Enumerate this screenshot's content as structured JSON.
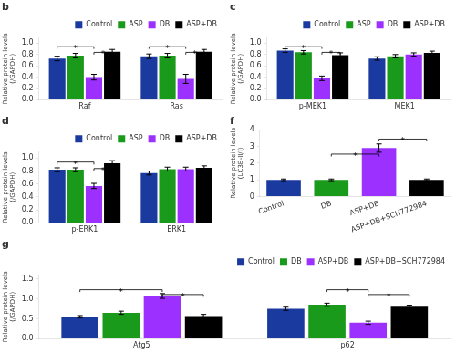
{
  "chart_data": [
    {
      "type": "bar",
      "title": "b",
      "categories": [
        "Raf",
        "Ras"
      ],
      "series": [
        {
          "name": "Control",
          "color": "#1a3a9f",
          "values": [
            0.73,
            0.77
          ],
          "errors": [
            0.04,
            0.04
          ]
        },
        {
          "name": "ASP",
          "color": "#1a9a1a",
          "values": [
            0.78,
            0.78
          ],
          "errors": [
            0.04,
            0.04
          ]
        },
        {
          "name": "DB",
          "color": "#9b30ff",
          "values": [
            0.4,
            0.37
          ],
          "errors": [
            0.05,
            0.08
          ]
        },
        {
          "name": "ASP+DB",
          "color": "#000000",
          "values": [
            0.85,
            0.85
          ],
          "errors": [
            0.04,
            0.04
          ]
        }
      ],
      "ylabel": "Relative protein levels\n(/GAPDH)",
      "ylim": [
        0.0,
        1.1
      ],
      "yticks": [
        {
          "value": 0,
          "label": "0.0"
        },
        0.2,
        0.4,
        0.6,
        0.8,
        {
          "value": 1,
          "label": "1.0"
        }
      ],
      "grid": false,
      "legend": "upper right",
      "annotations": [
        {
          "text": "*",
          "group": "Raf",
          "from": "Control",
          "to": "DB",
          "y": 0.9
        },
        {
          "text": "*",
          "group": "Raf",
          "from": "DB",
          "to": "ASP+DB",
          "y": 0.8
        },
        {
          "text": "*",
          "group": "Ras",
          "from": "Control",
          "to": "DB",
          "y": 0.9
        },
        {
          "text": "*",
          "group": "Ras",
          "from": "DB",
          "to": "ASP+DB",
          "y": 0.8
        }
      ]
    },
    {
      "type": "bar",
      "title": "c",
      "categories": [
        "p-MEK1",
        "MEK1"
      ],
      "series": [
        {
          "name": "Control",
          "color": "#1a3a9f",
          "values": [
            0.87,
            0.73
          ],
          "errors": [
            0.03,
            0.03
          ]
        },
        {
          "name": "ASP",
          "color": "#1a9a1a",
          "values": [
            0.84,
            0.77
          ],
          "errors": [
            0.03,
            0.03
          ]
        },
        {
          "name": "DB",
          "color": "#9b30ff",
          "values": [
            0.38,
            0.8
          ],
          "errors": [
            0.04,
            0.03
          ]
        },
        {
          "name": "ASP+DB",
          "color": "#000000",
          "values": [
            0.79,
            0.83
          ],
          "errors": [
            0.04,
            0.03
          ]
        }
      ],
      "ylabel": "Relative protein levels\n(/GAPDH)",
      "ylim": [
        0.0,
        1.1
      ],
      "yticks": [
        {
          "value": 0,
          "label": "0.0"
        },
        0.2,
        0.4,
        0.6,
        0.8,
        {
          "value": 1,
          "label": "1.0"
        }
      ],
      "grid": false,
      "legend": "upper right",
      "annotations": [
        {
          "text": "*",
          "group": "p-MEK1",
          "from": "Control",
          "to": "DB",
          "y": 0.9
        },
        {
          "text": "*",
          "group": "p-MEK1",
          "from": "DB",
          "to": "ASP+DB",
          "y": 0.8
        }
      ]
    },
    {
      "type": "bar",
      "title": "d",
      "categories": [
        "p-ERK1",
        "ERK1"
      ],
      "series": [
        {
          "name": "Control",
          "color": "#1a3a9f",
          "values": [
            0.82,
            0.77
          ],
          "errors": [
            0.03,
            0.03
          ]
        },
        {
          "name": "ASP",
          "color": "#1a9a1a",
          "values": [
            0.82,
            0.83
          ],
          "errors": [
            0.03,
            0.03
          ]
        },
        {
          "name": "DB",
          "color": "#9b30ff",
          "values": [
            0.57,
            0.83
          ],
          "errors": [
            0.04,
            0.03
          ]
        },
        {
          "name": "ASP+DB",
          "color": "#000000",
          "values": [
            0.92,
            0.85
          ],
          "errors": [
            0.04,
            0.03
          ]
        }
      ],
      "ylabel": "Relative protein levels\n(/GAPDH)",
      "ylim": [
        0.0,
        1.1
      ],
      "yticks": [
        {
          "value": 0,
          "label": "0.0"
        },
        0.2,
        0.4,
        0.6,
        0.8,
        {
          "value": 1,
          "label": "1.0"
        }
      ],
      "grid": false,
      "legend": "upper right",
      "annotations": [
        {
          "text": "*",
          "group": "p-ERK1",
          "from": "Control",
          "to": "DB",
          "y": 0.9
        },
        {
          "text": "*",
          "group": "p-ERK1",
          "from": "DB",
          "to": "ASP+DB",
          "y": 0.8
        }
      ]
    },
    {
      "type": "bar",
      "title": "f",
      "categories": [
        "Control",
        "DB",
        "ASP+DB",
        "ASP+DB+SCH772984"
      ],
      "values": [
        1.0,
        1.0,
        2.9,
        1.0
      ],
      "errors": [
        0.05,
        0.05,
        0.25,
        0.05
      ],
      "colors": [
        "#1a3a9f",
        "#1a9a1a",
        "#9b30ff",
        "#000000"
      ],
      "ylabel": "Relative protein levels\n(LC3B-II/I)",
      "ylim": [
        0,
        4.0
      ],
      "yticks": [
        0,
        1,
        2,
        3,
        4
      ],
      "grid": false,
      "annotations": [
        {
          "text": "*",
          "from": "DB",
          "to": "ASP+DB",
          "y": 2.4
        },
        {
          "text": "*",
          "from": "ASP+DB",
          "to": "ASP+DB+SCH772984",
          "y": 3.3
        }
      ]
    },
    {
      "type": "bar",
      "title": "g",
      "categories": [
        "Atg5",
        "p62"
      ],
      "series": [
        {
          "name": "Control",
          "color": "#1a3a9f",
          "values": [
            0.55,
            0.75
          ],
          "errors": [
            0.03,
            0.04
          ]
        },
        {
          "name": "DB",
          "color": "#1a9a1a",
          "values": [
            0.65,
            0.85
          ],
          "errors": [
            0.04,
            0.04
          ]
        },
        {
          "name": "ASP+DB",
          "color": "#9b30ff",
          "values": [
            1.07,
            0.4
          ],
          "errors": [
            0.06,
            0.04
          ]
        },
        {
          "name": "ASP+DB+SCH772984",
          "color": "#000000",
          "values": [
            0.57,
            0.8
          ],
          "errors": [
            0.04,
            0.04
          ]
        }
      ],
      "ylabel": "Relative protein levels\n(/GAPDH)",
      "ylim": [
        0.0,
        1.6
      ],
      "yticks": [
        {
          "value": 0,
          "label": "0.0"
        },
        0.5,
        {
          "value": 1,
          "label": "1.0"
        },
        1.5
      ],
      "grid": false,
      "legend": "upper right",
      "annotations": [
        {
          "text": "*",
          "group": "Atg5",
          "from": "Control",
          "to": "ASP+DB",
          "y": 1.17
        },
        {
          "text": "*",
          "group": "Atg5",
          "from": "ASP+DB",
          "to": "ASP+DB+SCH772984",
          "y": 1.05
        },
        {
          "text": "*",
          "group": "p62",
          "from": "DB",
          "to": "ASP+DB",
          "y": 1.17
        },
        {
          "text": "*",
          "group": "p62",
          "from": "ASP+DB",
          "to": "ASP+DB+SCH772984",
          "y": 1.05
        }
      ]
    }
  ]
}
